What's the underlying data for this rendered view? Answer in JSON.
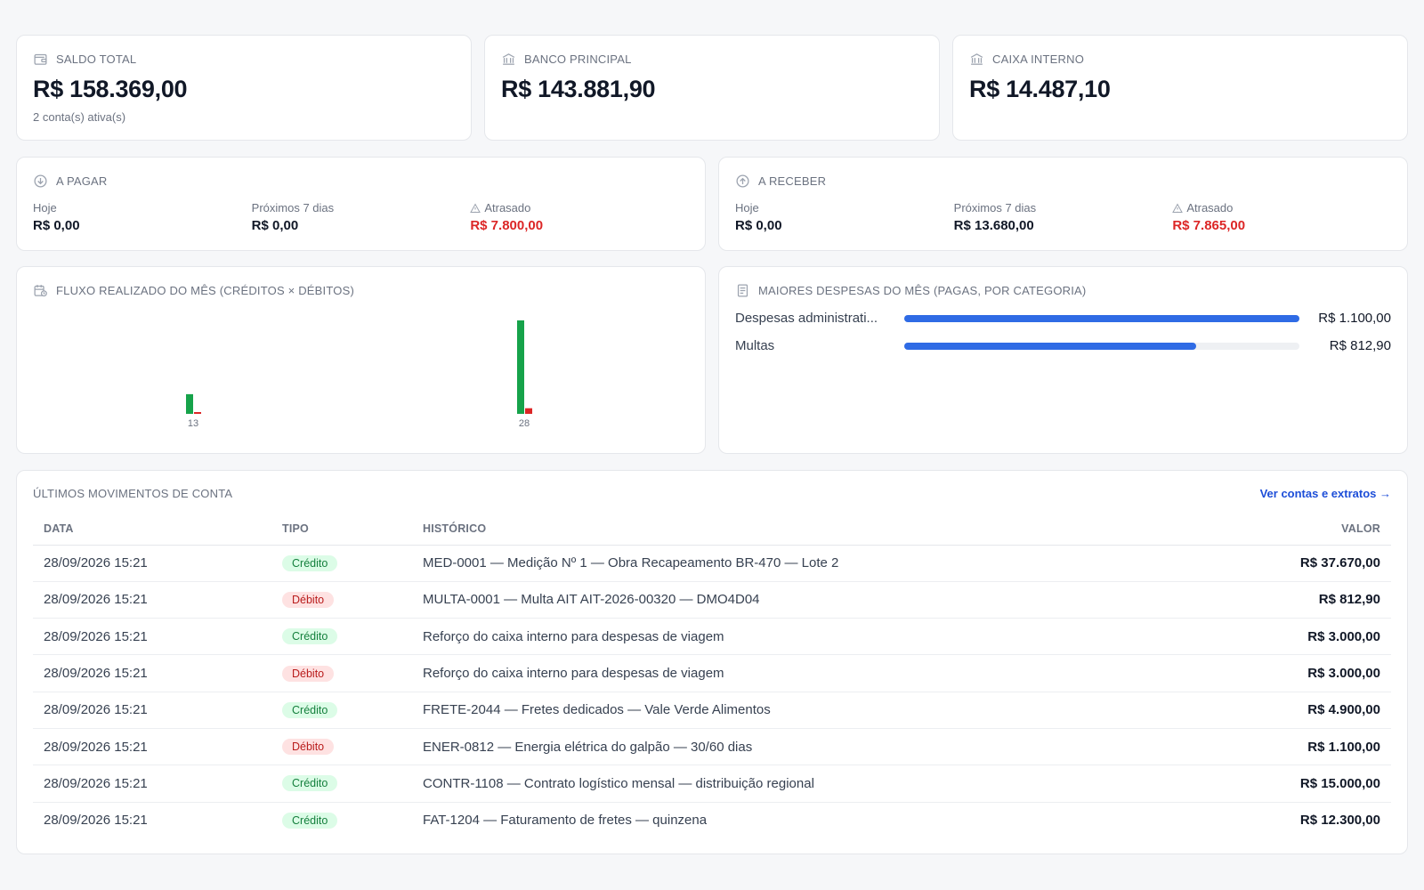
{
  "summary": {
    "saldo": {
      "label": "SALDO TOTAL",
      "value": "R$ 158.369,00",
      "note": "2 conta(s) ativa(s)"
    },
    "banco": {
      "label": "BANCO PRINCIPAL",
      "value": "R$ 143.881,90"
    },
    "caixa": {
      "label": "CAIXA INTERNO",
      "value": "R$ 14.487,10"
    }
  },
  "pagar": {
    "label": "A PAGAR",
    "hoje_label": "Hoje",
    "hoje_value": "R$ 0,00",
    "proximos_label": "Próximos 7 dias",
    "proximos_value": "R$ 0,00",
    "atrasado_label": "Atrasado",
    "atrasado_value": "R$ 7.800,00"
  },
  "receber": {
    "label": "A RECEBER",
    "hoje_label": "Hoje",
    "hoje_value": "R$ 0,00",
    "proximos_label": "Próximos 7 dias",
    "proximos_value": "R$ 13.680,00",
    "atrasado_label": "Atrasado",
    "atrasado_value": "R$ 7.865,00"
  },
  "fluxo": {
    "label": "FLUXO REALIZADO DO MÊS (CRÉDITOS × DÉBITOS)"
  },
  "chart_data": {
    "type": "bar",
    "title": "FLUXO REALIZADO DO MÊS (CRÉDITOS × DÉBITOS)",
    "categories": [
      "13",
      "28"
    ],
    "series": [
      {
        "name": "Créditos",
        "values": [
          4900,
          23270
        ]
      },
      {
        "name": "Débitos",
        "values": [
          380,
          1400
        ]
      }
    ],
    "ylim": [
      0,
      23270
    ],
    "grid": false,
    "colors": {
      "credito": "#16a34a",
      "debito": "#dc2626"
    }
  },
  "despesas": {
    "label": "MAIORES DESPESAS DO MÊS (PAGAS, POR CATEGORIA)",
    "items": [
      {
        "name": "Despesas administrati...",
        "value": "R$ 1.100,00",
        "fraction": 1.0
      },
      {
        "name": "Multas",
        "value": "R$ 812,90",
        "fraction": 0.739
      }
    ]
  },
  "movimentos": {
    "title": "ÚLTIMOS MOVIMENTOS DE CONTA",
    "link": "Ver contas e extratos →",
    "columns": {
      "data": "DATA",
      "tipo": "TIPO",
      "historico": "HISTÓRICO",
      "valor": "VALOR"
    },
    "rows": [
      {
        "data": "28/09/2026 15:21",
        "tipo": "Crédito",
        "kind": "credito",
        "historico": "MED-0001 — Medição Nº 1 — Obra Recapeamento BR-470 — Lote 2",
        "valor": "R$ 37.670,00"
      },
      {
        "data": "28/09/2026 15:21",
        "tipo": "Débito",
        "kind": "debito",
        "historico": "MULTA-0001 — Multa AIT AIT-2026-00320 — DMO4D04",
        "valor": "R$ 812,90"
      },
      {
        "data": "28/09/2026 15:21",
        "tipo": "Crédito",
        "kind": "credito",
        "historico": "Reforço do caixa interno para despesas de viagem",
        "valor": "R$ 3.000,00"
      },
      {
        "data": "28/09/2026 15:21",
        "tipo": "Débito",
        "kind": "debito",
        "historico": "Reforço do caixa interno para despesas de viagem",
        "valor": "R$ 3.000,00"
      },
      {
        "data": "28/09/2026 15:21",
        "tipo": "Crédito",
        "kind": "credito",
        "historico": "FRETE-2044 — Fretes dedicados — Vale Verde Alimentos",
        "valor": "R$ 4.900,00"
      },
      {
        "data": "28/09/2026 15:21",
        "tipo": "Débito",
        "kind": "debito",
        "historico": "ENER-0812 — Energia elétrica do galpão — 30/60 dias",
        "valor": "R$ 1.100,00"
      },
      {
        "data": "28/09/2026 15:21",
        "tipo": "Crédito",
        "kind": "credito",
        "historico": "CONTR-1108 — Contrato logístico mensal — distribuição regional",
        "valor": "R$ 15.000,00"
      },
      {
        "data": "28/09/2026 15:21",
        "tipo": "Crédito",
        "kind": "credito",
        "historico": "FAT-1204 — Faturamento de fretes — quinzena",
        "valor": "R$ 12.300,00"
      }
    ]
  }
}
